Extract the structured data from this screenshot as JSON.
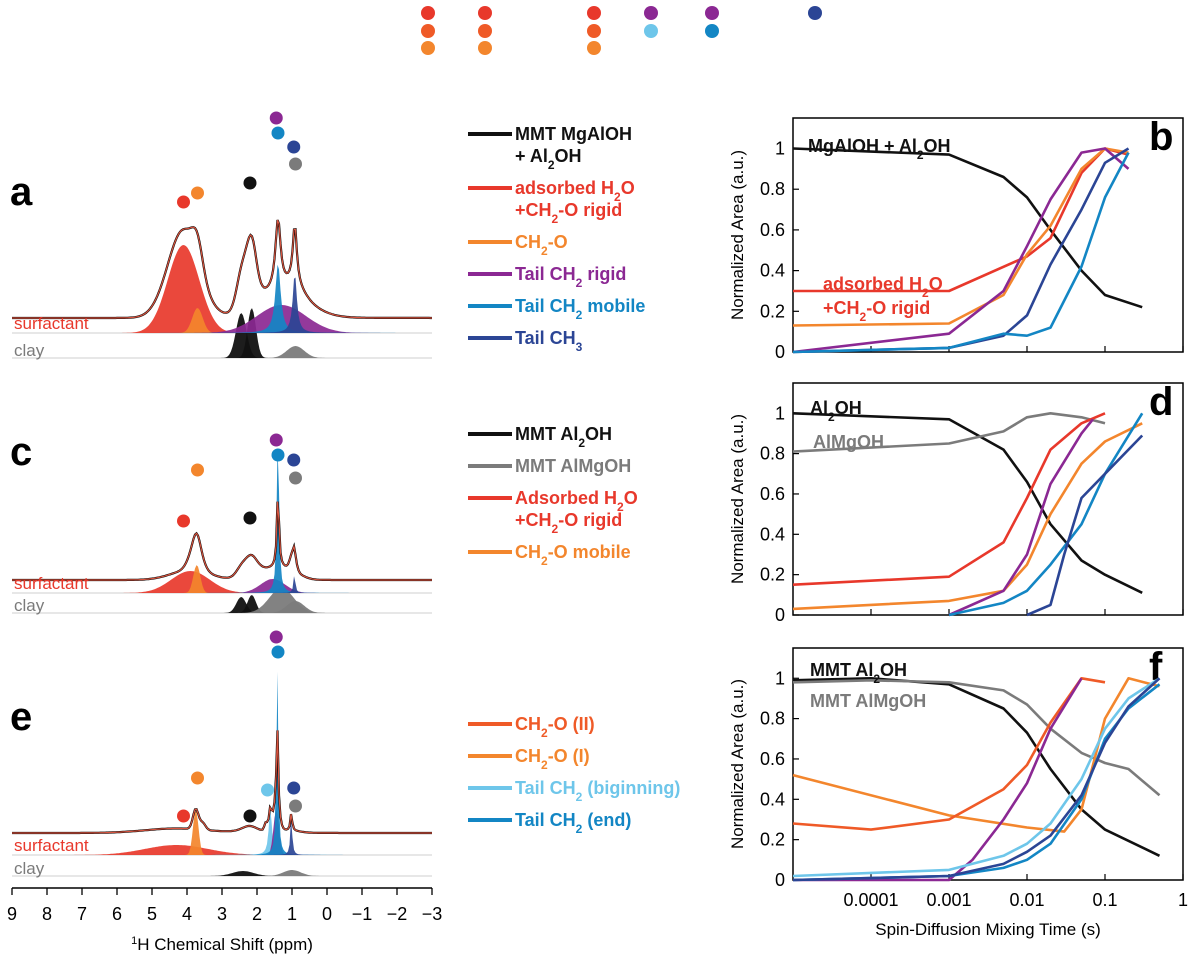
{
  "colors": {
    "black": "#111111",
    "gray": "#7b7b7b",
    "red": "#e8382b",
    "orange": "#f3862d",
    "red_orange": "#ef5a27",
    "purple": "#8b2893",
    "light_blue": "#6ec6ea",
    "blue": "#1386c4",
    "navy": "#2b4595",
    "fit": "#d9543f"
  },
  "top_dots": [
    {
      "color": "red"
    },
    {
      "color": "red"
    },
    {
      "color": "red"
    },
    {
      "color": "purple"
    },
    {
      "color": "purple"
    },
    {
      "color": "navy"
    },
    {
      "color": "red_orange"
    },
    {
      "color": "red_orange"
    },
    {
      "color": "red_orange"
    },
    {
      "color": "light_blue"
    },
    {
      "color": "blue"
    },
    {
      "color": "orange"
    },
    {
      "color": "orange"
    },
    {
      "color": "orange"
    }
  ],
  "nmr": {
    "xlabel_sup": "1",
    "xlabel": "H Chemical Shift (ppm)",
    "xticks": [
      "9",
      "8",
      "7",
      "6",
      "5",
      "4",
      "3",
      "2",
      "1",
      "0",
      "−1",
      "−2",
      "−3"
    ],
    "panels": [
      {
        "letter": "a",
        "surfactant_label": "surfactant",
        "clay_label": "clay",
        "peaks_ppm": [
          {
            "ppm": 4.1,
            "color": "red"
          },
          {
            "ppm": 3.7,
            "color": "orange"
          },
          {
            "ppm": 2.2,
            "color": "black"
          },
          {
            "ppm": 1.45,
            "color": "purple"
          },
          {
            "ppm": 1.4,
            "color": "blue"
          },
          {
            "ppm": 0.95,
            "color": "navy"
          },
          {
            "ppm": 0.9,
            "color": "gray"
          }
        ],
        "legend": [
          {
            "color": "black",
            "lines": [
              "MMT MgAlOH",
              "+ Al₂OH"
            ]
          },
          {
            "color": "red",
            "lines": [
              "adsorbed H₂O",
              "+CH₂-O rigid"
            ]
          },
          {
            "color": "orange",
            "lines": [
              "CH₂-O"
            ]
          },
          {
            "color": "purple",
            "lines": [
              "Tail CH₂ rigid"
            ]
          },
          {
            "color": "blue",
            "lines": [
              "Tail CH₂ mobile"
            ]
          },
          {
            "color": "navy",
            "lines": [
              "Tail CH₃"
            ]
          }
        ]
      },
      {
        "letter": "c",
        "surfactant_label": "surfactant",
        "clay_label": "clay",
        "peaks_ppm": [
          {
            "ppm": 4.1,
            "color": "red"
          },
          {
            "ppm": 3.7,
            "color": "orange"
          },
          {
            "ppm": 2.2,
            "color": "black"
          },
          {
            "ppm": 1.45,
            "color": "purple"
          },
          {
            "ppm": 1.4,
            "color": "blue"
          },
          {
            "ppm": 0.95,
            "color": "navy"
          },
          {
            "ppm": 0.9,
            "color": "gray"
          }
        ],
        "legend": [
          {
            "color": "black",
            "lines": [
              "MMT Al₂OH"
            ]
          },
          {
            "color": "gray",
            "lines": [
              "MMT AlMgOH"
            ]
          },
          {
            "color": "red",
            "lines": [
              "Adsorbed H₂O",
              "+CH₂-O rigid"
            ]
          },
          {
            "color": "orange",
            "lines": [
              "CH₂-O mobile"
            ]
          }
        ]
      },
      {
        "letter": "e",
        "surfactant_label": "surfactant",
        "clay_label": "clay",
        "peaks_ppm": [
          {
            "ppm": 4.1,
            "color": "red"
          },
          {
            "ppm": 3.7,
            "color": "orange"
          },
          {
            "ppm": 2.2,
            "color": "black"
          },
          {
            "ppm": 1.7,
            "color": "light_blue"
          },
          {
            "ppm": 1.45,
            "color": "purple"
          },
          {
            "ppm": 1.4,
            "color": "blue"
          },
          {
            "ppm": 0.95,
            "color": "navy"
          },
          {
            "ppm": 0.9,
            "color": "gray"
          }
        ],
        "legend": [
          {
            "color": "red_orange",
            "lines": [
              "CH₂-O (II)"
            ]
          },
          {
            "color": "orange",
            "lines": [
              "CH₂-O (I)"
            ]
          },
          {
            "color": "light_blue",
            "lines": [
              "Tail CH₂ (biginning)"
            ]
          },
          {
            "color": "blue",
            "lines": [
              "Tail CH₂ (end)"
            ]
          }
        ]
      }
    ]
  },
  "chart_data": [
    {
      "type": "line",
      "panel": "b",
      "xscale": "log",
      "xlim": [
        1e-05,
        1
      ],
      "ylim": [
        0,
        1.15
      ],
      "ylabel": "Normalized Area (a.u.)",
      "yticks": [
        "0",
        "0.2",
        "0.4",
        "0.6",
        "0.8",
        "1"
      ],
      "annotations": [
        {
          "text": "MgAlOH + Al₂OH",
          "color": "black"
        },
        {
          "text": "adsorbed H₂O",
          "color": "red"
        },
        {
          "text": "+CH₂-O rigid",
          "color": "red"
        }
      ],
      "series": [
        {
          "color": "black",
          "x": [
            1e-05,
            0.001,
            0.005,
            0.01,
            0.02,
            0.05,
            0.1,
            0.3
          ],
          "y": [
            1.0,
            0.97,
            0.86,
            0.76,
            0.6,
            0.4,
            0.28,
            0.22
          ]
        },
        {
          "color": "red",
          "x": [
            1e-05,
            0.001,
            0.01,
            0.02,
            0.05,
            0.1,
            0.2
          ],
          "y": [
            0.3,
            0.3,
            0.47,
            0.56,
            0.88,
            1.0,
            0.97
          ]
        },
        {
          "color": "orange",
          "x": [
            1e-05,
            0.001,
            0.005,
            0.01,
            0.02,
            0.05,
            0.1,
            0.2
          ],
          "y": [
            0.13,
            0.14,
            0.28,
            0.48,
            0.62,
            0.9,
            1.0,
            0.98
          ]
        },
        {
          "color": "purple",
          "x": [
            1e-05,
            0.001,
            0.005,
            0.01,
            0.02,
            0.05,
            0.1,
            0.2
          ],
          "y": [
            0.0,
            0.09,
            0.3,
            0.52,
            0.75,
            0.98,
            1.0,
            0.9
          ]
        },
        {
          "color": "navy",
          "x": [
            1e-05,
            0.001,
            0.005,
            0.01,
            0.02,
            0.05,
            0.1,
            0.2
          ],
          "y": [
            0.0,
            0.02,
            0.08,
            0.18,
            0.43,
            0.7,
            0.93,
            1.0
          ]
        },
        {
          "color": "blue",
          "x": [
            1e-05,
            0.001,
            0.005,
            0.01,
            0.02,
            0.05,
            0.1,
            0.2
          ],
          "y": [
            0.0,
            0.02,
            0.09,
            0.08,
            0.12,
            0.42,
            0.76,
            0.98
          ]
        }
      ]
    },
    {
      "type": "line",
      "panel": "d",
      "xscale": "log",
      "xlim": [
        1e-05,
        1
      ],
      "ylim": [
        0,
        1.15
      ],
      "ylabel": "Normalized Area (a.u.)",
      "yticks": [
        "0",
        "0.2",
        "0.4",
        "0.6",
        "0.8",
        "1"
      ],
      "annotations": [
        {
          "text": "Al₂OH",
          "color": "black"
        },
        {
          "text": "AlMgOH",
          "color": "gray"
        }
      ],
      "series": [
        {
          "color": "black",
          "x": [
            1e-05,
            0.001,
            0.005,
            0.01,
            0.02,
            0.05,
            0.1,
            0.3
          ],
          "y": [
            1.0,
            0.97,
            0.82,
            0.66,
            0.45,
            0.27,
            0.2,
            0.11
          ]
        },
        {
          "color": "gray",
          "x": [
            1e-05,
            0.001,
            0.005,
            0.01,
            0.02,
            0.05,
            0.1
          ],
          "y": [
            0.81,
            0.85,
            0.91,
            0.98,
            1.0,
            0.98,
            0.95
          ]
        },
        {
          "color": "red",
          "x": [
            1e-05,
            0.001,
            0.005,
            0.01,
            0.02,
            0.05,
            0.1
          ],
          "y": [
            0.15,
            0.19,
            0.36,
            0.58,
            0.82,
            0.95,
            1.0
          ]
        },
        {
          "color": "orange",
          "x": [
            1e-05,
            0.001,
            0.005,
            0.01,
            0.02,
            0.05,
            0.1,
            0.3
          ],
          "y": [
            0.03,
            0.07,
            0.12,
            0.25,
            0.5,
            0.75,
            0.86,
            0.95
          ]
        },
        {
          "color": "purple",
          "x": [
            0.001,
            0.005,
            0.01,
            0.02,
            0.05,
            0.07
          ],
          "y": [
            0.0,
            0.12,
            0.3,
            0.65,
            0.9,
            0.97
          ]
        },
        {
          "color": "blue",
          "x": [
            0.001,
            0.005,
            0.01,
            0.02,
            0.05,
            0.1,
            0.3
          ],
          "y": [
            0.0,
            0.06,
            0.12,
            0.25,
            0.45,
            0.7,
            1.0
          ]
        },
        {
          "color": "navy",
          "x": [
            0.01,
            0.02,
            0.03,
            0.05,
            0.1,
            0.3
          ],
          "y": [
            0.0,
            0.05,
            0.3,
            0.58,
            0.7,
            0.89
          ]
        }
      ]
    },
    {
      "type": "line",
      "panel": "f",
      "xscale": "log",
      "xlim": [
        1e-05,
        1
      ],
      "ylim": [
        0,
        1.15
      ],
      "xlabel": "Spin-Diffusion Mixing Time (s)",
      "ylabel": "Normalized Area (a.u.)",
      "xticks": [
        "0.0001",
        "0.001",
        "0.01",
        "0.1",
        "1"
      ],
      "yticks": [
        "0",
        "0.2",
        "0.4",
        "0.6",
        "0.8",
        "1"
      ],
      "annotations": [
        {
          "text": "MMT Al₂OH",
          "color": "black"
        },
        {
          "text": "MMT AlMgOH",
          "color": "gray"
        }
      ],
      "series": [
        {
          "color": "black",
          "x": [
            1e-05,
            0.0001,
            0.001,
            0.005,
            0.01,
            0.02,
            0.05,
            0.1,
            0.5
          ],
          "y": [
            0.99,
            1.0,
            0.97,
            0.85,
            0.73,
            0.55,
            0.35,
            0.25,
            0.12
          ]
        },
        {
          "color": "gray",
          "x": [
            1e-05,
            0.0001,
            0.001,
            0.005,
            0.01,
            0.02,
            0.05,
            0.1,
            0.2,
            0.5
          ],
          "y": [
            0.98,
            0.99,
            0.98,
            0.94,
            0.87,
            0.75,
            0.63,
            0.58,
            0.55,
            0.42
          ]
        },
        {
          "color": "orange",
          "x": [
            1e-05,
            0.001,
            0.01,
            0.03,
            0.05,
            0.1,
            0.2,
            0.5
          ],
          "y": [
            0.52,
            0.32,
            0.26,
            0.24,
            0.35,
            0.8,
            1.0,
            0.96
          ]
        },
        {
          "color": "red_orange",
          "x": [
            1e-05,
            0.0001,
            0.001,
            0.005,
            0.01,
            0.02,
            0.05,
            0.1
          ],
          "y": [
            0.28,
            0.25,
            0.3,
            0.45,
            0.57,
            0.78,
            1.0,
            0.98
          ]
        },
        {
          "color": "purple",
          "x": [
            1e-05,
            0.001,
            0.002,
            0.005,
            0.01,
            0.02,
            0.05
          ],
          "y": [
            0.0,
            0.0,
            0.1,
            0.3,
            0.48,
            0.75,
            1.0
          ]
        },
        {
          "color": "light_blue",
          "x": [
            1e-05,
            0.001,
            0.005,
            0.01,
            0.02,
            0.05,
            0.1,
            0.2,
            0.5
          ],
          "y": [
            0.02,
            0.05,
            0.12,
            0.18,
            0.28,
            0.5,
            0.75,
            0.9,
            1.0
          ]
        },
        {
          "color": "blue",
          "x": [
            1e-05,
            0.001,
            0.005,
            0.01,
            0.02,
            0.05,
            0.1,
            0.2,
            0.5
          ],
          "y": [
            0.0,
            0.02,
            0.06,
            0.1,
            0.18,
            0.4,
            0.7,
            0.85,
            0.97
          ]
        },
        {
          "color": "navy",
          "x": [
            1e-05,
            0.001,
            0.005,
            0.01,
            0.02,
            0.05,
            0.1,
            0.2,
            0.5
          ],
          "y": [
            0.0,
            0.02,
            0.08,
            0.14,
            0.22,
            0.42,
            0.68,
            0.86,
            1.0
          ]
        }
      ]
    }
  ]
}
